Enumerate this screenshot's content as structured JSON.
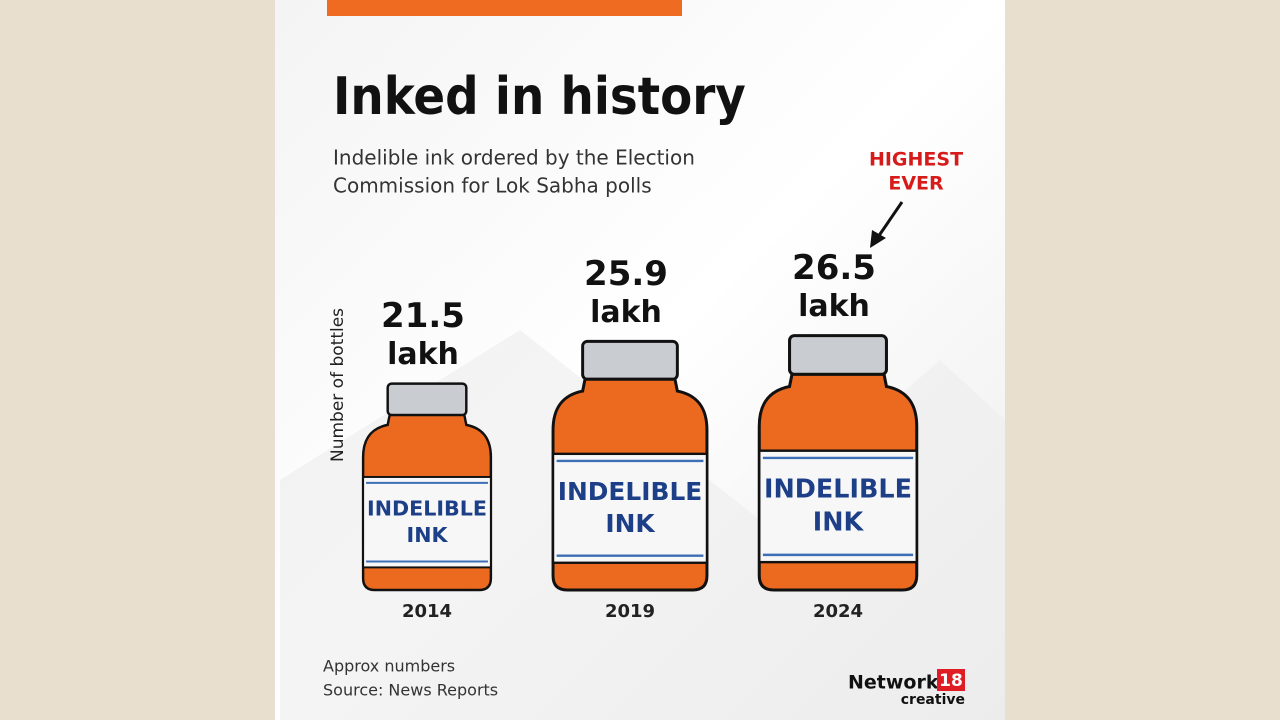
{
  "chart_data": {
    "type": "pictorial-bar",
    "title": "Inked in history",
    "subtitle": [
      "Indelible ink ordered by the Election",
      "Commission for Lok Sabha polls"
    ],
    "y_label": "Number of bottles",
    "categories": [
      "2014",
      "2019",
      "2024"
    ],
    "values": [
      21.5,
      25.9,
      26.5
    ],
    "unit": "lakh",
    "color": "#ec6a1f",
    "bottle_label": [
      "INDELIBLE",
      "INK"
    ],
    "annotation": [
      "HIGHEST",
      "EVER"
    ],
    "notes": [
      "Approx numbers",
      "Source: News Reports"
    ],
    "logo": {
      "name": "Network",
      "number": "18",
      "tagline": "creative"
    }
  }
}
